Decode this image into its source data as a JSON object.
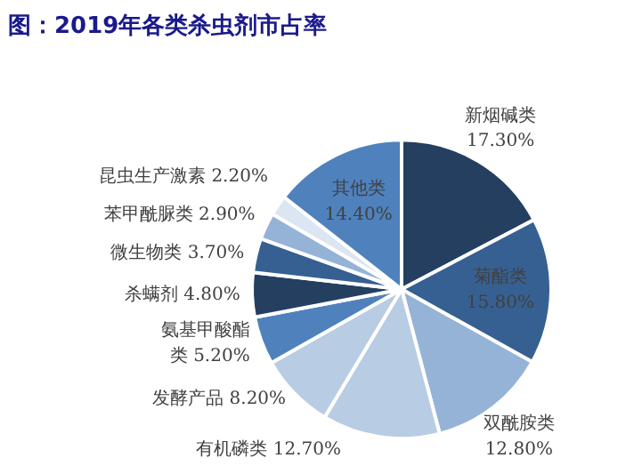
{
  "chart_data": {
    "type": "pie",
    "title": "图：2019年各类杀虫剂市占率",
    "categories": [
      "新烟碱类",
      "菊酯类",
      "双酰胺类",
      "有机磷类",
      "发酵产品",
      "氨基甲酸酯类",
      "杀螨剂",
      "微生物类",
      "苯甲酰脲类",
      "昆虫生产激素",
      "其他类"
    ],
    "values": [
      17.3,
      15.8,
      12.8,
      12.7,
      8.2,
      5.2,
      4.8,
      3.7,
      2.9,
      2.2,
      14.4
    ],
    "colors": [
      "#243f60",
      "#376092",
      "#95b3d7",
      "#b8cce4",
      "#b8cce4",
      "#4f81bd",
      "#243f60",
      "#376092",
      "#95b3d7",
      "#dce6f2",
      "#4f81bd"
    ],
    "value_labels": [
      "17.30%",
      "15.80%",
      "12.80%",
      "12.70%",
      "8.20%",
      "5.20%",
      "4.80%",
      "3.70%",
      "2.90%",
      "2.20%",
      "14.40%"
    ]
  }
}
